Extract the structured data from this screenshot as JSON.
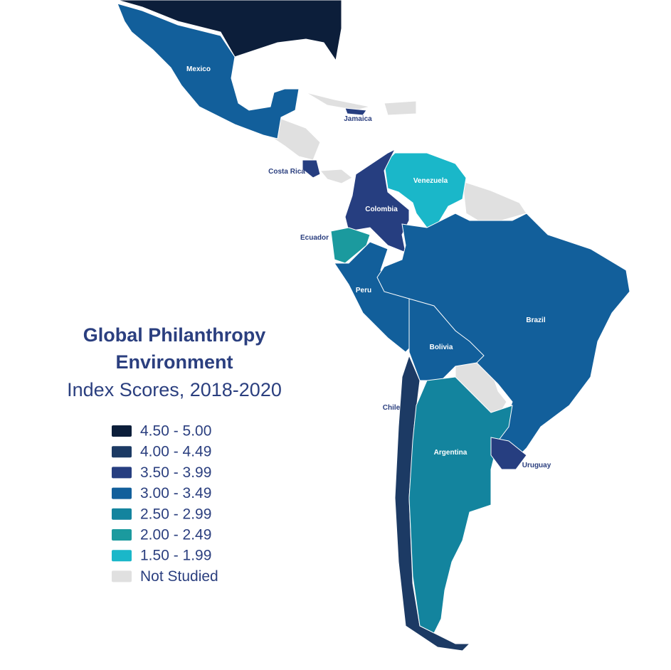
{
  "title": {
    "line1": "Global Philanthropy",
    "line2": "Environment",
    "line3": "Index Scores, 2018-2020"
  },
  "legend": [
    {
      "label": "4.50 - 5.00",
      "color": "#0c1e3a"
    },
    {
      "label": "4.00 - 4.49",
      "color": "#1c3a64"
    },
    {
      "label": "3.50 - 3.99",
      "color": "#263e80"
    },
    {
      "label": "3.00 - 3.49",
      "color": "#125f9b"
    },
    {
      "label": "2.50 - 2.99",
      "color": "#13849e"
    },
    {
      "label": "2.00 - 2.49",
      "color": "#1b9a9e"
    },
    {
      "label": "1.50 - 1.99",
      "color": "#1ab7c9"
    },
    {
      "label": "Not Studied",
      "color": "#e0e0e0"
    }
  ],
  "countries": [
    {
      "label": "Mexico",
      "color": "#125f9b",
      "text_color": "#ffffff"
    },
    {
      "label": "Jamaica",
      "color": "#263e80",
      "text_color": "#2b3f7f"
    },
    {
      "label": "Costa Rica",
      "color": "#263e80",
      "text_color": "#2b3f7f"
    },
    {
      "label": "Venezuela",
      "color": "#1ab7c9",
      "text_color": "#ffffff"
    },
    {
      "label": "Colombia",
      "color": "#263e80",
      "text_color": "#ffffff"
    },
    {
      "label": "Ecuador",
      "color": "#1b9a9e",
      "text_color": "#2b3f7f"
    },
    {
      "label": "Peru",
      "color": "#125f9b",
      "text_color": "#ffffff"
    },
    {
      "label": "Brazil",
      "color": "#125f9b",
      "text_color": "#ffffff"
    },
    {
      "label": "Bolivia",
      "color": "#125f9b",
      "text_color": "#ffffff"
    },
    {
      "label": "Chile",
      "color": "#1c3a64",
      "text_color": "#2b3f7f"
    },
    {
      "label": "Argentina",
      "color": "#13849e",
      "text_color": "#ffffff"
    },
    {
      "label": "Uruguay",
      "color": "#263e80",
      "text_color": "#2b3f7f"
    }
  ]
}
